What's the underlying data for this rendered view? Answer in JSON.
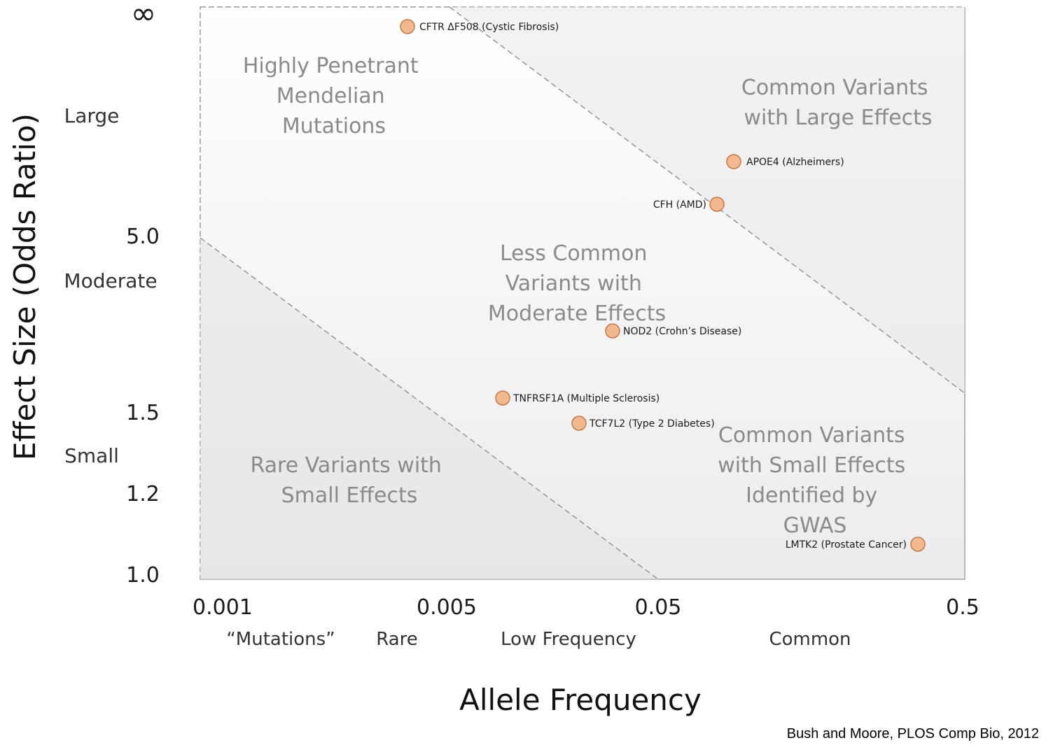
{
  "chart_data": {
    "type": "scatter",
    "xlabel": "Allele Frequency",
    "ylabel": "Effect Size (Odds Ratio)",
    "x_ticks": [
      "0.001",
      "0.005",
      "0.05",
      "0.5"
    ],
    "y_ticks": [
      "∞",
      "5.0",
      "1.5",
      "1.2",
      "1.0"
    ],
    "x_categories": [
      "“Mutations”",
      "Rare",
      "Low Frequency",
      "Common"
    ],
    "y_categories": [
      "Large",
      "Moderate",
      "Small"
    ],
    "regions": [
      {
        "label": [
          "Highly Penetrant",
          "Mendelian",
          "Mutations"
        ]
      },
      {
        "label": [
          "Common Variants",
          "with Large Effects"
        ]
      },
      {
        "label": [
          "Less Common",
          "Variants with",
          "Moderate Effects"
        ]
      },
      {
        "label": [
          "Rare Variants with",
          "Small Effects"
        ]
      },
      {
        "label": [
          "Common Variants",
          "with Small Effects",
          "Identified by",
          "GWAS"
        ]
      }
    ],
    "points": [
      {
        "label": "CFTR ΔF508 (Cystic Fibrosis)",
        "x": 0.004,
        "y": "∞"
      },
      {
        "label": "APOE4 (Alzheimers)",
        "x": 0.09,
        "y": 9
      },
      {
        "label": "CFH (AMD)",
        "x": 0.08,
        "y": 7.5
      },
      {
        "label": "NOD2 (Crohn’s Disease)",
        "x": 0.04,
        "y": 2.2
      },
      {
        "label": "TNFRSF1A (Multiple Sclerosis)",
        "x": 0.015,
        "y": 1.55
      },
      {
        "label": "TCF7L2 (Type 2 Diabetes)",
        "x": 0.03,
        "y": 1.42
      },
      {
        "label": "LMTK2 (Prostate Cancer)",
        "x": 0.45,
        "y": 1.1
      }
    ],
    "grid": false,
    "point_color": "#f2b98f",
    "point_stroke": "#c07a4a",
    "background_color": "#f0f0f0"
  },
  "credit": "Bush and Moore, PLOS Comp Bio, 2012"
}
